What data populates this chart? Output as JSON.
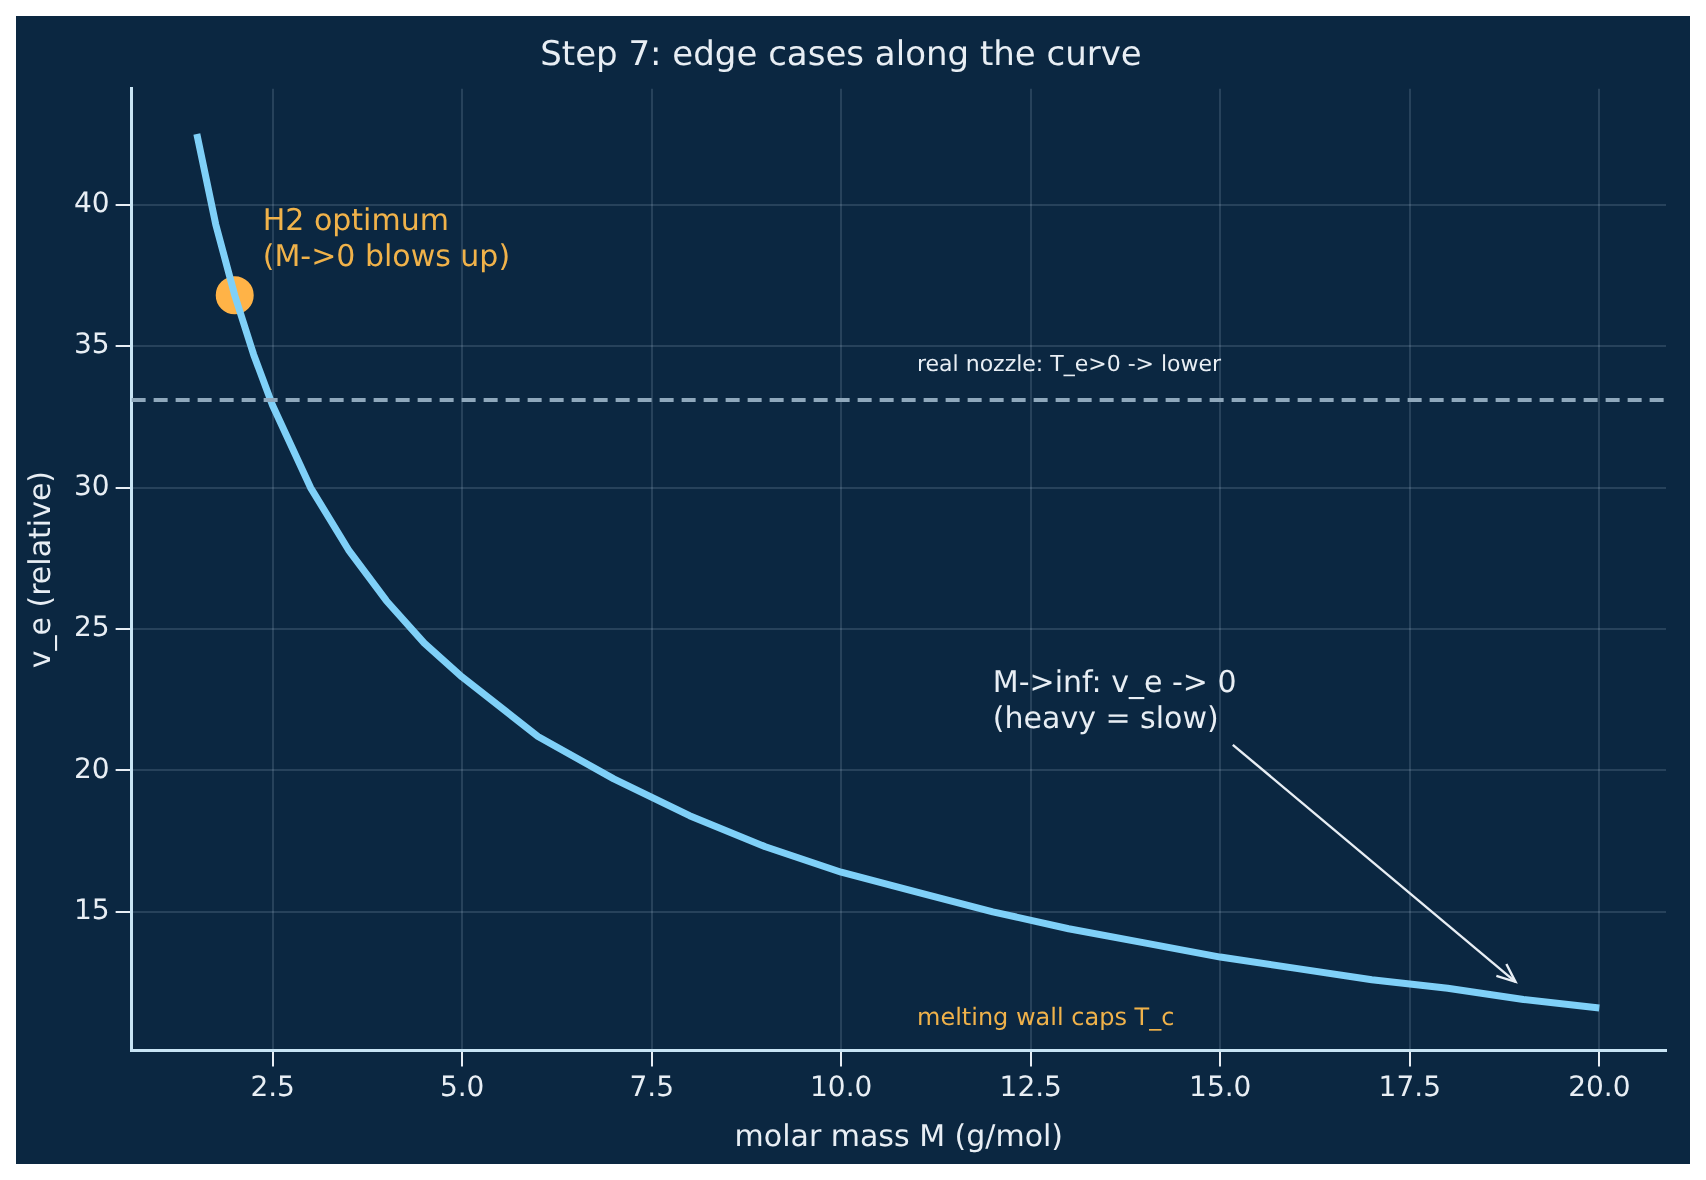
{
  "chart_data": {
    "type": "line",
    "title": "Step 7: edge cases along the curve",
    "xlabel": "molar mass M (g/mol)",
    "ylabel": "v_e (relative)",
    "xlim": [
      0.64,
      20.88
    ],
    "ylim": [
      10.1,
      44.1
    ],
    "xticks": [
      {
        "value": 2.5,
        "label": "2.5"
      },
      {
        "value": 5,
        "label": "5.0"
      },
      {
        "value": 7.5,
        "label": "7.5"
      },
      {
        "value": 10,
        "label": "10.0"
      },
      {
        "value": 12.5,
        "label": "12.5"
      },
      {
        "value": 15,
        "label": "15.0"
      },
      {
        "value": 17.5,
        "label": "17.5"
      },
      {
        "value": 20,
        "label": "20.0"
      }
    ],
    "yticks": [
      15,
      20,
      25,
      30,
      35,
      40
    ],
    "grid": true,
    "legend": false,
    "series": [
      {
        "color": "#7fd0f8",
        "x": [
          1.5,
          1.75,
          2,
          2.25,
          2.5,
          3,
          3.5,
          4,
          4.5,
          5,
          6,
          7,
          8,
          9,
          10,
          11,
          12,
          13,
          14,
          15,
          16,
          17,
          18,
          19,
          20
        ],
        "values": [
          42.5,
          39.3,
          36.8,
          34.7,
          32.9,
          30.0,
          27.8,
          26.0,
          24.5,
          23.3,
          21.2,
          19.7,
          18.4,
          17.3,
          16.4,
          15.7,
          15.0,
          14.4,
          13.9,
          13.4,
          13.0,
          12.6,
          12.3,
          11.9,
          11.6
        ]
      },
      {
        "type": "scatter",
        "color": "#ffb347",
        "x": [
          2
        ],
        "values": [
          36.8
        ],
        "marker": "circle"
      }
    ],
    "ref_lines": [
      {
        "axis": "y",
        "value": 33.1,
        "label": "real nozzle: T_e>0 -> lower",
        "color": "#8fa8bc",
        "line_style": "dashed"
      }
    ],
    "annotations": [
      {
        "text": "H2 optimum\n(M->0 blows up)",
        "x": 2,
        "y": 36.8
      },
      {
        "text": "M->inf: v_e -> 0\n(heavy = slow)",
        "x": 19,
        "y": 12.1
      },
      "melting wall caps T_c"
    ]
  }
}
